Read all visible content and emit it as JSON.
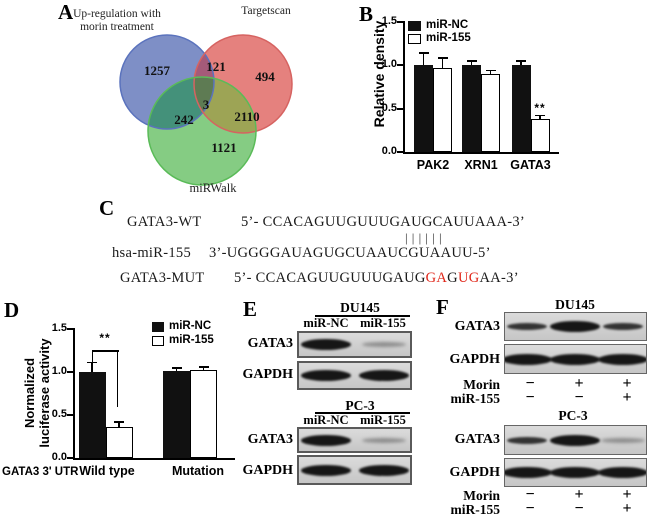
{
  "panel_labels": {
    "a": "A",
    "b": "B",
    "c": "C",
    "d": "D",
    "e": "E",
    "f": "F"
  },
  "venn": {
    "set1_line1": "Up-regulation with",
    "set1_line2": "morin treatment",
    "set2": "Targetscan",
    "set3": "miRWalk",
    "counts": {
      "set1_only": "1257",
      "set1_set2": "121",
      "set2_only": "494",
      "all_three": "3",
      "set1_set3": "242",
      "set2_set3": "2110",
      "set3_only": "1121"
    },
    "colors": {
      "blue": "#7e8fc6",
      "red": "#e5817e",
      "green": "#85cc83",
      "blue_red": "#a55a79",
      "blue_green": "#44917a",
      "red_green": "#9da455",
      "center": "#5e7b53",
      "blue_stroke": "#5b73bd",
      "red_stroke": "#d66361",
      "green_stroke": "#5abb58"
    }
  },
  "chart_data": [
    {
      "id": "B",
      "type": "bar",
      "ylabel": "Relative density",
      "ylim": [
        0,
        1.5
      ],
      "yticks": [
        0,
        0.5,
        1,
        1.5
      ],
      "categories": [
        "PAK2",
        "XRN1",
        "GATA3"
      ],
      "series": [
        {
          "name": "miR-NC",
          "fill": "#111111",
          "values": [
            1.0,
            1.0,
            1.0
          ],
          "errors": [
            0.13,
            0.04,
            0.04
          ]
        },
        {
          "name": "miR-155",
          "fill": "#ffffff",
          "values": [
            0.97,
            0.9,
            0.38
          ],
          "errors": [
            0.1,
            0.03,
            0.03
          ]
        }
      ],
      "annotations": [
        {
          "text": "**",
          "category": "GATA3",
          "series": "miR-155"
        }
      ],
      "legend_position": "top-left"
    },
    {
      "id": "D",
      "type": "bar",
      "ylabel": "Normalized luciferase activity",
      "ylabel_line1": "Normalized",
      "ylabel_line2": "luciferase activity",
      "x_prefix": "GATA3 3' UTR",
      "ylim": [
        0,
        1.5
      ],
      "yticks": [
        0,
        0.5,
        1,
        1.5
      ],
      "categories": [
        "Wild type",
        "Mutation"
      ],
      "series": [
        {
          "name": "miR-NC",
          "fill": "#111111",
          "values": [
            1.0,
            1.01
          ],
          "errors": [
            0.1,
            0.03
          ]
        },
        {
          "name": "miR-155",
          "fill": "#ffffff",
          "values": [
            0.36,
            1.02
          ],
          "errors": [
            0.05,
            0.03
          ]
        }
      ],
      "annotations": [
        {
          "text": "**",
          "category": "Wild type",
          "between": [
            "miR-NC",
            "miR-155"
          ]
        }
      ],
      "legend_position": "top-right"
    }
  ],
  "alignment": {
    "wt_label": "GATA3-WT",
    "wt_seq": "5’- CCACAGUUGUUUGAUGCAUUAAA-3’",
    "pipes": "||||||",
    "mir_label": "hsa-miR-155",
    "mir_seq": "3’-UGGGGAUAGUGCUAAUCGUAAUU-5’",
    "mut_label": "GATA3-MUT",
    "mut_segments": [
      {
        "text": "5’- CCACAGUUGUUUGAUG",
        "red": false
      },
      {
        "text": "GA",
        "red": true
      },
      {
        "text": "G",
        "red": false
      },
      {
        "text": "UG",
        "red": true
      },
      {
        "text": "AA-3’",
        "red": false
      }
    ],
    "red_color": "#e02619"
  },
  "blots_e": {
    "groups": [
      {
        "cell_line": "DU145",
        "lanes": [
          "miR-NC",
          "miR-155"
        ],
        "rows": [
          {
            "protein": "GATA3",
            "bands": [
              "strong",
              "faint"
            ]
          },
          {
            "protein": "GAPDH",
            "bands": [
              "strong",
              "strong"
            ]
          }
        ]
      },
      {
        "cell_line": "PC-3",
        "lanes": [
          "miR-NC",
          "miR-155"
        ],
        "rows": [
          {
            "protein": "GATA3",
            "bands": [
              "strong",
              "faint"
            ]
          },
          {
            "protein": "GAPDH",
            "bands": [
              "strong",
              "strong"
            ]
          }
        ]
      }
    ]
  },
  "blots_f": {
    "groups": [
      {
        "cell_line": "DU145",
        "rows": [
          {
            "protein": "GATA3",
            "bands": [
              "medium",
              "strong",
              "medium"
            ]
          },
          {
            "protein": "GAPDH",
            "bands": [
              "strong",
              "strong",
              "strong"
            ]
          }
        ],
        "conditions": [
          {
            "label": "Morin",
            "signs": [
              "−",
              "+",
              "+"
            ]
          },
          {
            "label": "miR-155",
            "signs": [
              "−",
              "−",
              "+"
            ]
          }
        ]
      },
      {
        "cell_line": "PC-3",
        "rows": [
          {
            "protein": "GATA3",
            "bands": [
              "medium",
              "strong",
              "faint"
            ]
          },
          {
            "protein": "GAPDH",
            "bands": [
              "strong",
              "strong",
              "strong"
            ]
          }
        ],
        "conditions": [
          {
            "label": "Morin",
            "signs": [
              "−",
              "+",
              "+"
            ]
          },
          {
            "label": "miR-155",
            "signs": [
              "−",
              "−",
              "+"
            ]
          }
        ]
      }
    ]
  }
}
